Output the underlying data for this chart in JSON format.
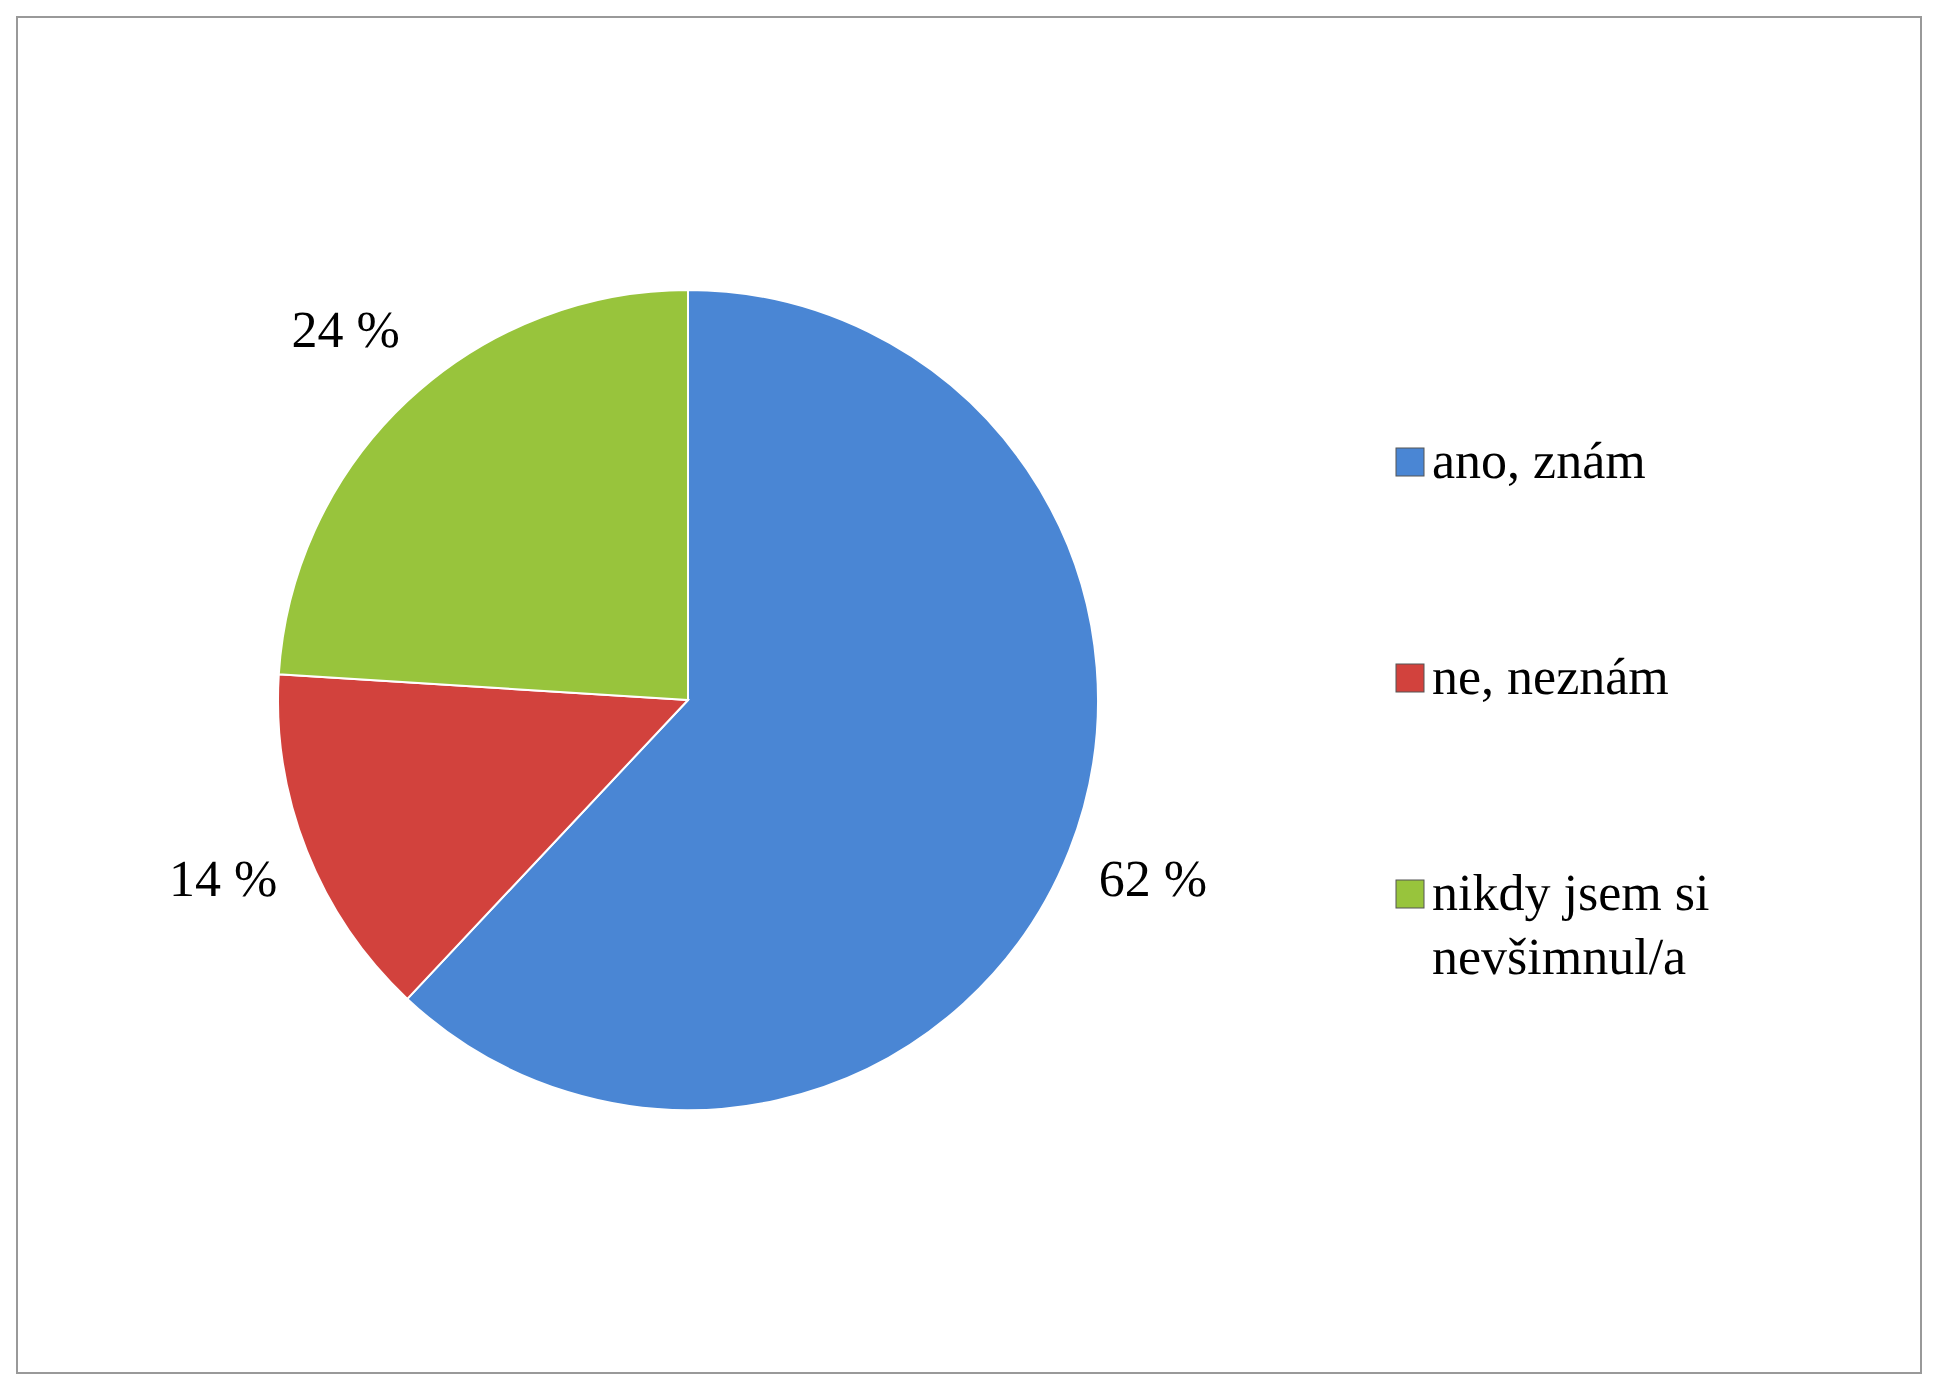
{
  "chart_data": {
    "type": "pie",
    "categories": [
      "ano, znám",
      "ne, neznám",
      "nikdy jsem si nevšimnul/a"
    ],
    "values": [
      62,
      14,
      24
    ],
    "colors": [
      "#4a86d4",
      "#d2423d",
      "#98c43c"
    ],
    "value_labels": [
      "62 %",
      "14 %",
      "24 %"
    ],
    "legend": "right"
  }
}
